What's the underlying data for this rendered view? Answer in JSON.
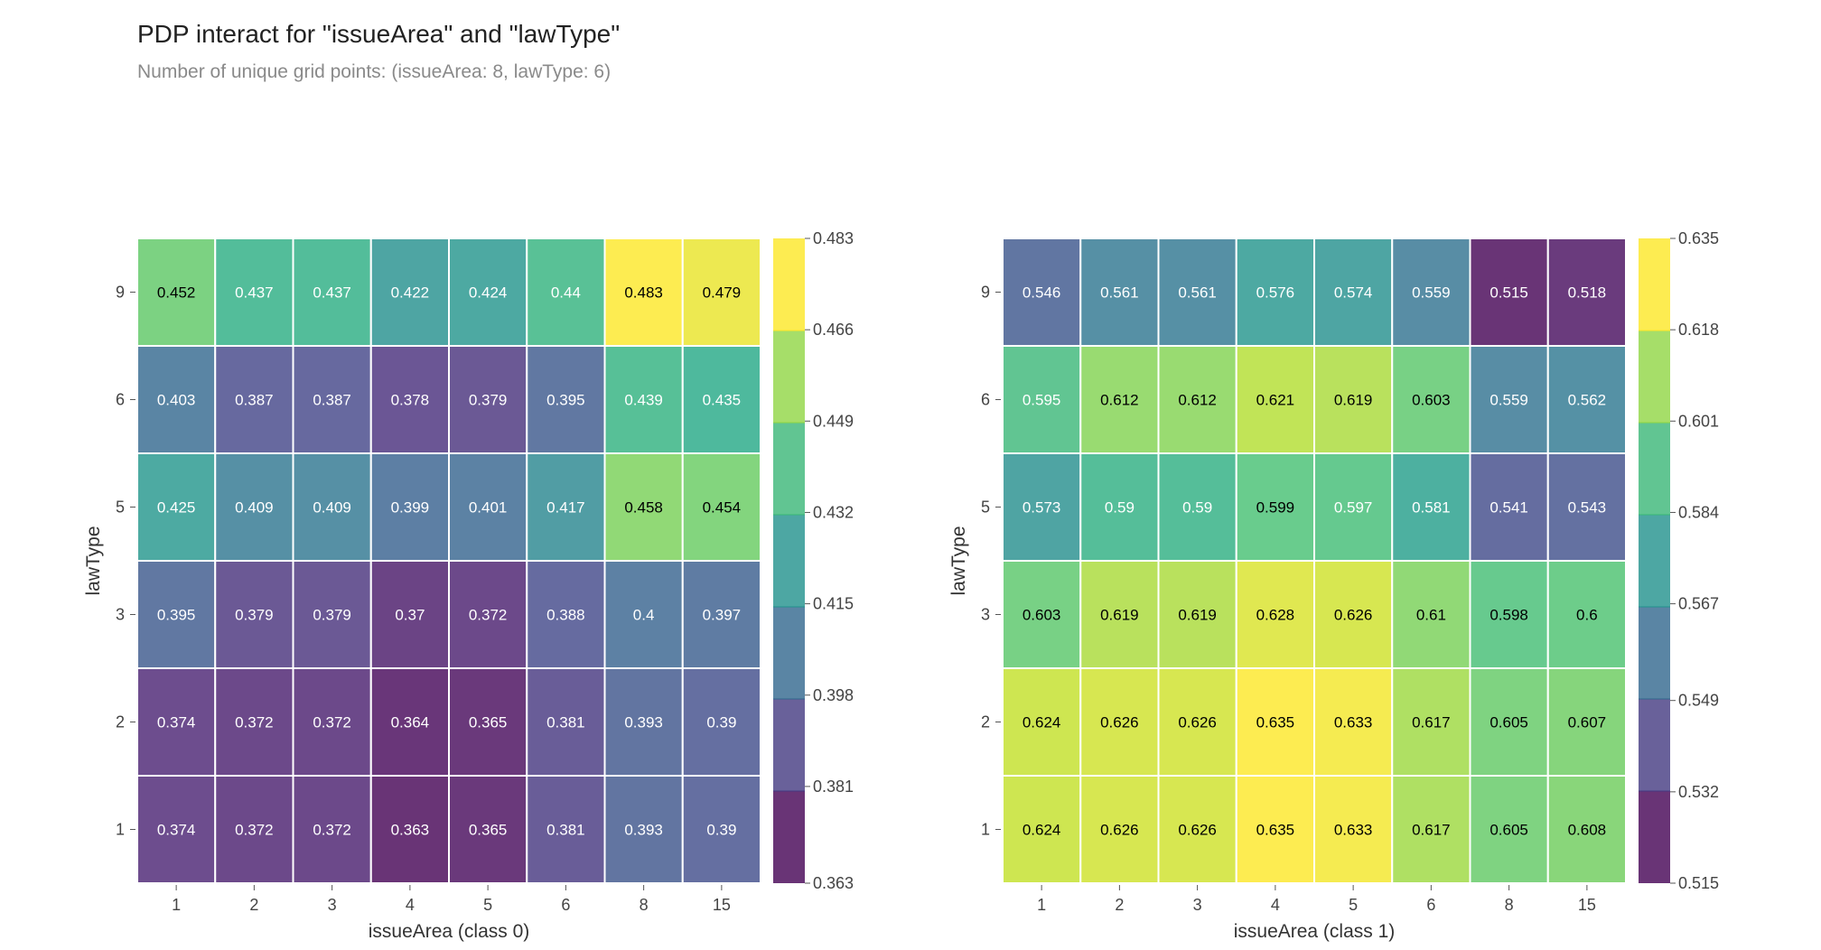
{
  "title": "PDP interact for \"issueArea\" and \"lawType\"",
  "subtitle": "Number of unique grid points: (issueArea: 8, lawType: 6)",
  "chart_data": [
    {
      "type": "heatmap",
      "xlabel": "issueArea (class 0)",
      "ylabel": "lawType",
      "x_categories": [
        "1",
        "2",
        "3",
        "4",
        "5",
        "6",
        "8",
        "15"
      ],
      "y_categories": [
        "9",
        "6",
        "5",
        "3",
        "2",
        "1"
      ],
      "values": [
        [
          "0.452",
          "0.437",
          "0.437",
          "0.422",
          "0.424",
          "0.44",
          "0.483",
          "0.479"
        ],
        [
          "0.403",
          "0.387",
          "0.387",
          "0.378",
          "0.379",
          "0.395",
          "0.439",
          "0.435"
        ],
        [
          "0.425",
          "0.409",
          "0.409",
          "0.399",
          "0.401",
          "0.417",
          "0.458",
          "0.454"
        ],
        [
          "0.395",
          "0.379",
          "0.379",
          "0.37",
          "0.372",
          "0.388",
          "0.4",
          "0.397"
        ],
        [
          "0.374",
          "0.372",
          "0.372",
          "0.364",
          "0.365",
          "0.381",
          "0.393",
          "0.39"
        ],
        [
          "0.374",
          "0.372",
          "0.372",
          "0.363",
          "0.365",
          "0.381",
          "0.393",
          "0.39"
        ]
      ],
      "colorbar_ticks": [
        "0.483",
        "0.466",
        "0.449",
        "0.432",
        "0.415",
        "0.398",
        "0.381",
        "0.363"
      ],
      "color_range": [
        0.363,
        0.483
      ],
      "colormap": "viridis"
    },
    {
      "type": "heatmap",
      "xlabel": "issueArea (class 1)",
      "ylabel": "lawType",
      "x_categories": [
        "1",
        "2",
        "3",
        "4",
        "5",
        "6",
        "8",
        "15"
      ],
      "y_categories": [
        "9",
        "6",
        "5",
        "3",
        "2",
        "1"
      ],
      "values": [
        [
          "0.546",
          "0.561",
          "0.561",
          "0.576",
          "0.574",
          "0.559",
          "0.515",
          "0.518"
        ],
        [
          "0.595",
          "0.612",
          "0.612",
          "0.621",
          "0.619",
          "0.603",
          "0.559",
          "0.562"
        ],
        [
          "0.573",
          "0.59",
          "0.59",
          "0.599",
          "0.597",
          "0.581",
          "0.541",
          "0.543"
        ],
        [
          "0.603",
          "0.619",
          "0.619",
          "0.628",
          "0.626",
          "0.61",
          "0.598",
          "0.6"
        ],
        [
          "0.624",
          "0.626",
          "0.626",
          "0.635",
          "0.633",
          "0.617",
          "0.605",
          "0.607"
        ],
        [
          "0.624",
          "0.626",
          "0.626",
          "0.635",
          "0.633",
          "0.617",
          "0.605",
          "0.608"
        ]
      ],
      "colorbar_ticks": [
        "0.635",
        "0.618",
        "0.601",
        "0.584",
        "0.567",
        "0.549",
        "0.532",
        "0.515"
      ],
      "color_range": [
        0.515,
        0.635
      ],
      "colormap": "viridis"
    }
  ]
}
